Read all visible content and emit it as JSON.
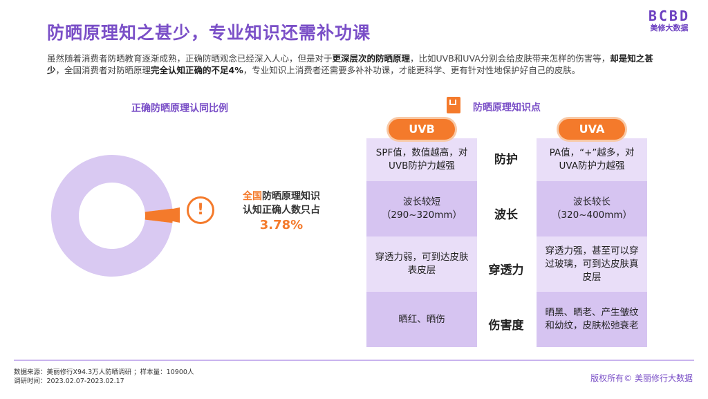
{
  "title": "防晒原理知之甚少，专业知识还需补功课",
  "logo": {
    "mark": "BCBD",
    "sub": "美修大数据"
  },
  "intro": [
    {
      "t": "虽然随着消费者防晒教育逐渐成熟，正确防晒观念已经深入人心，但是对于"
    },
    {
      "t": "更深层次的防晒原理",
      "b": true
    },
    {
      "t": "，比如UVB和UVA分别会给皮肤带来怎样的伤害等，"
    },
    {
      "t": "却是知之甚少",
      "b": true
    },
    {
      "t": "，全国消费者对防晒原理"
    },
    {
      "t": "完全认知正确的不足4%",
      "b": true
    },
    {
      "t": "，专业知识上消费者还需要多补补功课，才能更科学、更有针对性地保护好自己的皮肤。"
    }
  ],
  "left_title": "正确防晒原理认同比例",
  "donut": {
    "percent": 3.78,
    "main_color": "#d9c9f2",
    "highlight_color": "#f47a2b"
  },
  "callout": {
    "icon": "exclamation-icon",
    "line1_highlight": "全国",
    "line1_rest": "防晒原理知识",
    "line2": "认知正确人数只占",
    "value": "3.78%"
  },
  "right_title": "防晒原理知识点",
  "right_icon": "book-icon",
  "uvb": {
    "label": "UVB",
    "cells": [
      "SPF值，数值越高，对UVB防护力越强",
      "波长较短（290~320mm）",
      "穿透力弱，可到达皮肤表皮层",
      "晒红、晒伤"
    ]
  },
  "uva": {
    "label": "UVA",
    "cells": [
      "PA值，“+”越多，对UVA防护力越强",
      "波长较长（320~400mm）",
      "穿透力强，甚至可以穿过玻璃，可到达皮肤真皮层",
      "晒黑、晒老、产生皱纹和幼纹，皮肤松弛衰老"
    ]
  },
  "row_labels": [
    "防护",
    "波长",
    "穿透力",
    "伤害度"
  ],
  "footer": {
    "source": "数据来源：美丽修行X94.3万人防晒调研 ；样本量：10900人",
    "period": "调研时间：2023.02.07-2023.02.17",
    "copyright": "版权所有© 美丽修行大数据"
  }
}
